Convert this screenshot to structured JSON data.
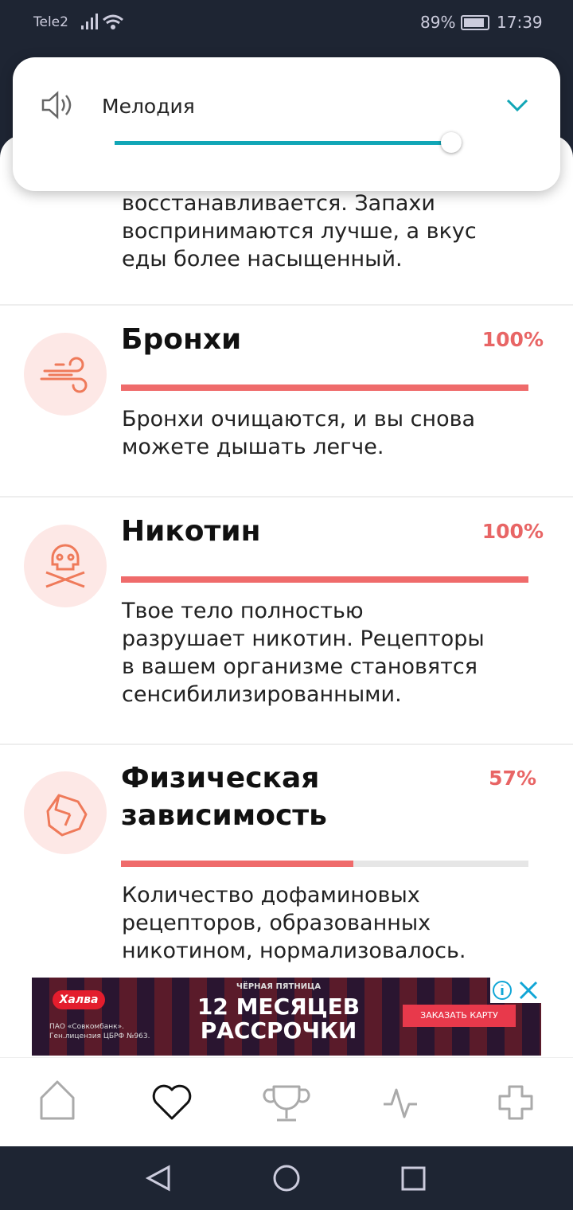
{
  "status_bar": {
    "carrier": "Tele2",
    "battery": "89%",
    "time": "17:39"
  },
  "volume_popup": {
    "label": "Мелодия",
    "level": 97
  },
  "intro_lines": [
    "восстанавливается. Запахи",
    "воспринимаются лучше, а вкус",
    "еды более насыщенный."
  ],
  "items": [
    {
      "title_lines": [
        "Бронхи"
      ],
      "progress": 100,
      "progress_label": "100%",
      "description_lines": [
        "Бронхи очищаются, и вы снова",
        "можете дышать легче."
      ]
    },
    {
      "title_lines": [
        "Никотин"
      ],
      "progress": 100,
      "progress_label": "100%",
      "description_lines": [
        "Твое тело полностью",
        "разрушает никотин. Рецепторы",
        "в вашем организме становятся",
        "сенсибилизированными."
      ]
    },
    {
      "title_lines": [
        "Физическая",
        "зависимость"
      ],
      "progress": 57,
      "progress_label": "57%",
      "description_lines": [
        "Количество дофаминовых",
        "рецепторов, образованных",
        "никотином, нормализовалось."
      ]
    }
  ],
  "ad": {
    "brand": "Халва",
    "tagline": "ЧЁРНАЯ ПЯТНИЦА",
    "headline_lines": [
      "12 МЕСЯЦЕВ",
      "РАССРОЧКИ"
    ],
    "button": "ЗАКАЗАТЬ КАРТУ",
    "legal_lines": [
      "ПАО «Совкомбанк».",
      "Ген.лицензия ЦБРФ №963."
    ]
  }
}
